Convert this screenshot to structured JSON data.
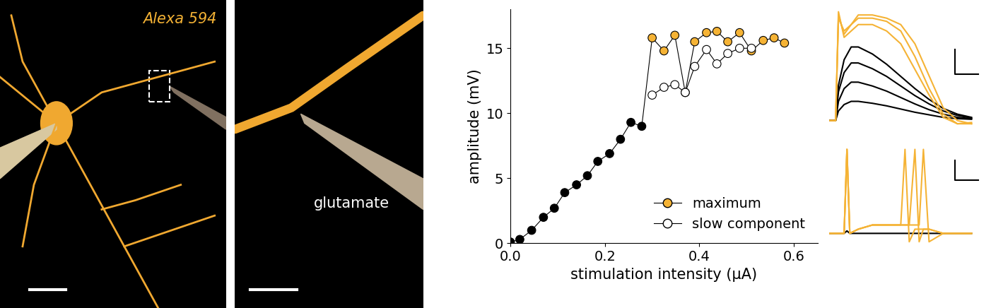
{
  "chart_data": {
    "type": "scatter",
    "xlabel": "stimulation intensity (µA)",
    "ylabel": "amplitude (mV)",
    "xlim": [
      0,
      0.65
    ],
    "ylim": [
      0,
      18
    ],
    "xticks": [
      {
        "value": 0,
        "label": "0.0"
      },
      {
        "value": 0.2,
        "label": "0.2"
      },
      {
        "value": 0.4,
        "label": "0.4"
      },
      {
        "value": 0.6,
        "label": "0.6"
      }
    ],
    "yticks": [
      0,
      5,
      10,
      15
    ],
    "legend": "lower right",
    "series": [
      {
        "name": "maximum",
        "color": "#f5b335",
        "marker": "o",
        "line_style": "solid",
        "colors": [
          "#000000",
          "#000000",
          "#000000",
          "#000000",
          "#000000",
          "#000000",
          "#000000",
          "#000000",
          "#000000",
          "#000000",
          "#000000",
          "#000000",
          "#000000",
          "#f5b335",
          "#f5b335",
          "#f5b335",
          "#f5b335",
          "#f5b335",
          "#f5b335",
          "#f5b335",
          "#f5b335",
          "#f5b335",
          "#f5b335",
          "#f5b335",
          "#f5b335",
          "#f5b335"
        ],
        "x": [
          0,
          0.02,
          0.045,
          0.07,
          0.093,
          0.115,
          0.14,
          0.163,
          0.185,
          0.21,
          0.233,
          0.255,
          0.278,
          0.3,
          0.325,
          0.348,
          0.37,
          0.39,
          0.415,
          0.437,
          0.46,
          0.485,
          0.51,
          0.535,
          0.558,
          0.58
        ],
        "values": [
          0.1,
          0.3,
          1.0,
          2.0,
          2.7,
          3.9,
          4.5,
          5.2,
          6.3,
          6.9,
          8.0,
          9.3,
          9.0,
          15.8,
          14.8,
          16.0,
          11.6,
          15.5,
          16.2,
          16.3,
          15.5,
          16.2,
          14.8,
          15.6,
          15.8,
          15.4
        ]
      },
      {
        "name": "slow component",
        "color": "#ffffff",
        "marker": "o",
        "line_style": "solid",
        "x": [
          0.3,
          0.325,
          0.348,
          0.37,
          0.39,
          0.415,
          0.437,
          0.46,
          0.485,
          0.51
        ],
        "values": [
          11.4,
          12.0,
          12.2,
          11.6,
          13.6,
          14.9,
          13.8,
          14.6,
          15.0,
          15.0
        ]
      }
    ]
  },
  "images": {
    "overview": {
      "label": "Alexa 594",
      "color": "#f5b335"
    },
    "detail": {
      "label": "glutamate",
      "color": "#ffffff"
    }
  },
  "traces": {
    "upper": {
      "x": [
        0,
        0.4,
        0.6,
        1,
        1.5,
        2,
        3,
        4,
        5,
        6,
        7,
        8,
        9,
        10
      ],
      "series": [
        {
          "color": "#000000",
          "values": [
            0,
            0,
            1.5,
            2.5,
            3,
            3,
            2.7,
            2.3,
            1.8,
            1.3,
            0.9,
            0.5,
            0.3,
            0.2
          ]
        },
        {
          "color": "#000000",
          "values": [
            0,
            0,
            3,
            5,
            6,
            6,
            5.4,
            4.6,
            3.6,
            2.6,
            1.7,
            1,
            0.5,
            0.3
          ]
        },
        {
          "color": "#000000",
          "values": [
            0,
            0,
            4.5,
            7.5,
            9,
            9,
            8.1,
            6.9,
            5.4,
            3.9,
            2.6,
            1.5,
            0.8,
            0.4
          ]
        },
        {
          "color": "#000000",
          "values": [
            0,
            0,
            5.5,
            9.5,
            11.5,
            11.5,
            10.4,
            8.8,
            6.9,
            5,
            3.3,
            1.9,
            1,
            0.5
          ]
        },
        {
          "color": "#f5b335",
          "values": [
            0,
            0,
            16,
            14,
            15,
            16,
            16,
            15.5,
            14,
            10,
            5,
            1,
            -0.5,
            -0.5
          ]
        },
        {
          "color": "#f5b335",
          "values": [
            0,
            0,
            17,
            13,
            14,
            15,
            15,
            14,
            12,
            8,
            4,
            0.5,
            -0.5,
            -0.3
          ]
        },
        {
          "color": "#f5b335",
          "values": [
            0,
            0,
            16.5,
            13.5,
            15,
            16.5,
            16.5,
            16,
            15,
            12,
            7,
            2,
            0,
            -0.5
          ]
        }
      ]
    },
    "lower": {
      "x": [
        0,
        1,
        1.2,
        1.4,
        2,
        3,
        4,
        5,
        5.3,
        5.6,
        6,
        6.3,
        6.6,
        7,
        8,
        10
      ],
      "series": [
        {
          "color": "#000000",
          "values": [
            0,
            0,
            0.3,
            0,
            0,
            0,
            0,
            0,
            0,
            0,
            0,
            0,
            0,
            0,
            0,
            0
          ]
        },
        {
          "color": "#f5b335",
          "values": [
            0,
            0,
            10,
            0,
            0.5,
            1,
            1,
            1,
            10,
            -1,
            0.5,
            0.5,
            0.5,
            0.5,
            0,
            0
          ]
        },
        {
          "color": "#f5b335",
          "values": [
            0,
            0,
            10,
            0,
            0.5,
            1,
            1,
            1,
            1,
            1,
            10,
            -1,
            0.5,
            0.5,
            0,
            0
          ]
        },
        {
          "color": "#f5b335",
          "values": [
            0,
            0,
            10,
            0,
            0.5,
            1,
            1,
            1,
            1,
            1,
            1,
            1,
            10,
            -1,
            0,
            0
          ]
        }
      ]
    }
  }
}
